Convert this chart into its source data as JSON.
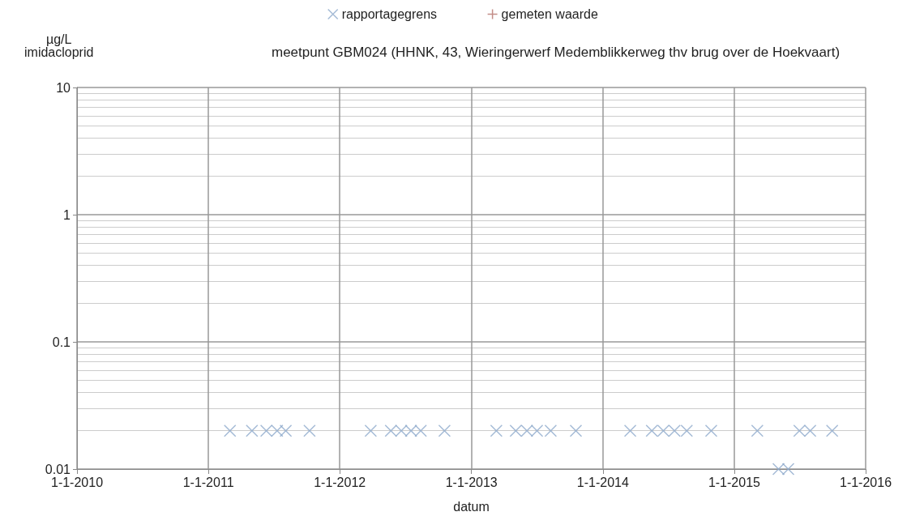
{
  "chart_data": {
    "type": "scatter",
    "title": "meetpunt GBM024 (HHNK, 43, Wieringerwerf Medemblikkerweg thv brug over de Hoekvaart)",
    "xlabel": "datum",
    "ylabel": "µg/L imidacloprid",
    "series": [
      {
        "name": "rapportagegrens",
        "color": "#8eaacc",
        "marker": "cross",
        "x": [
          "2011-03-02",
          "2011-05-02",
          "2011-06-11",
          "2011-07-11",
          "2011-08-04",
          "2011-10-09",
          "2012-03-27",
          "2012-05-22",
          "2012-06-20",
          "2012-07-17",
          "2012-08-13",
          "2012-10-18",
          "2013-03-11",
          "2013-05-04",
          "2013-06-04",
          "2013-07-02",
          "2013-08-09",
          "2013-10-18",
          "2014-03-18",
          "2014-05-17",
          "2014-06-18",
          "2014-07-19",
          "2014-08-22",
          "2014-10-29",
          "2015-03-06",
          "2015-05-04",
          "2015-05-31",
          "2015-07-01",
          "2015-07-31",
          "2015-09-30"
        ],
        "values": [
          0.02,
          0.02,
          0.02,
          0.02,
          0.02,
          0.02,
          0.02,
          0.02,
          0.02,
          0.02,
          0.02,
          0.02,
          0.02,
          0.02,
          0.02,
          0.02,
          0.02,
          0.02,
          0.02,
          0.02,
          0.02,
          0.02,
          0.02,
          0.02,
          0.02,
          0.01,
          0.01,
          0.02,
          0.02,
          0.02
        ]
      },
      {
        "name": "gemeten waarde",
        "color": "#b4726a"
      }
    ],
    "xlim": [
      "2010-01-01",
      "2016-01-01"
    ],
    "xticks": [
      {
        "value": "2010-01-01",
        "label": "1-1-2010"
      },
      {
        "value": "2011-01-01",
        "label": "1-1-2011"
      },
      {
        "value": "2012-01-01",
        "label": "1-1-2012"
      },
      {
        "value": "2013-01-01",
        "label": "1-1-2013"
      },
      {
        "value": "2014-01-01",
        "label": "1-1-2014"
      },
      {
        "value": "2015-01-01",
        "label": "1-1-2015"
      },
      {
        "value": "2016-01-01",
        "label": "1-1-2016"
      }
    ],
    "ylim": [
      0.01,
      10
    ],
    "yticks": [
      0.01,
      0.1,
      1,
      10
    ],
    "log": "y",
    "grid": true,
    "legend": "top"
  }
}
